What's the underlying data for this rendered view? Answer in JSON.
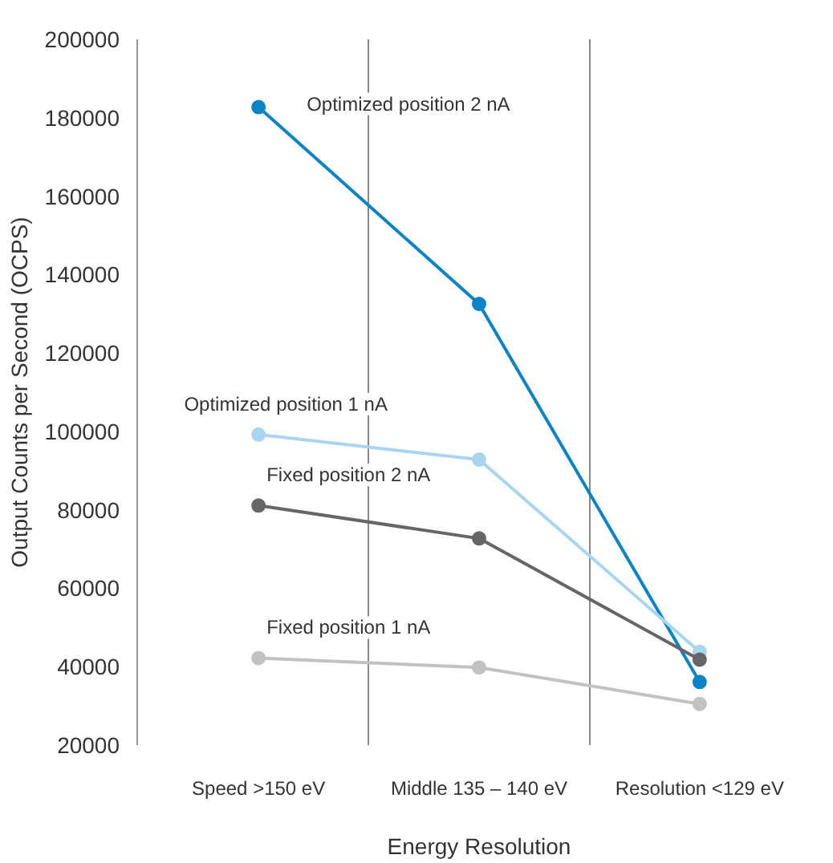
{
  "chart_data": {
    "type": "line",
    "xlabel": "Energy Resolution",
    "ylabel": "Output Counts per Second (OCPS)",
    "categories": [
      "Speed >150 eV",
      "Middle 135 – 140 eV",
      "Resolution <129 eV"
    ],
    "ylim": [
      20000,
      200000
    ],
    "yticks": [
      20000,
      40000,
      60000,
      80000,
      100000,
      120000,
      140000,
      160000,
      180000,
      200000
    ],
    "grid": "x",
    "marker": "circle",
    "line_style": "solid",
    "series": [
      {
        "name": "Optimized position 2 nA",
        "color": "#0a84c6",
        "values": [
          182700,
          132500,
          36100
        ]
      },
      {
        "name": "Optimized position 1 nA",
        "color": "#a8d5f0",
        "values": [
          99200,
          92800,
          43800
        ]
      },
      {
        "name": "Fixed position 2 nA",
        "color": "#666666",
        "values": [
          81100,
          72700,
          41800
        ]
      },
      {
        "name": "Fixed position 1 nA",
        "color": "#c2c2c2",
        "values": [
          42200,
          39800,
          30500
        ]
      }
    ]
  }
}
